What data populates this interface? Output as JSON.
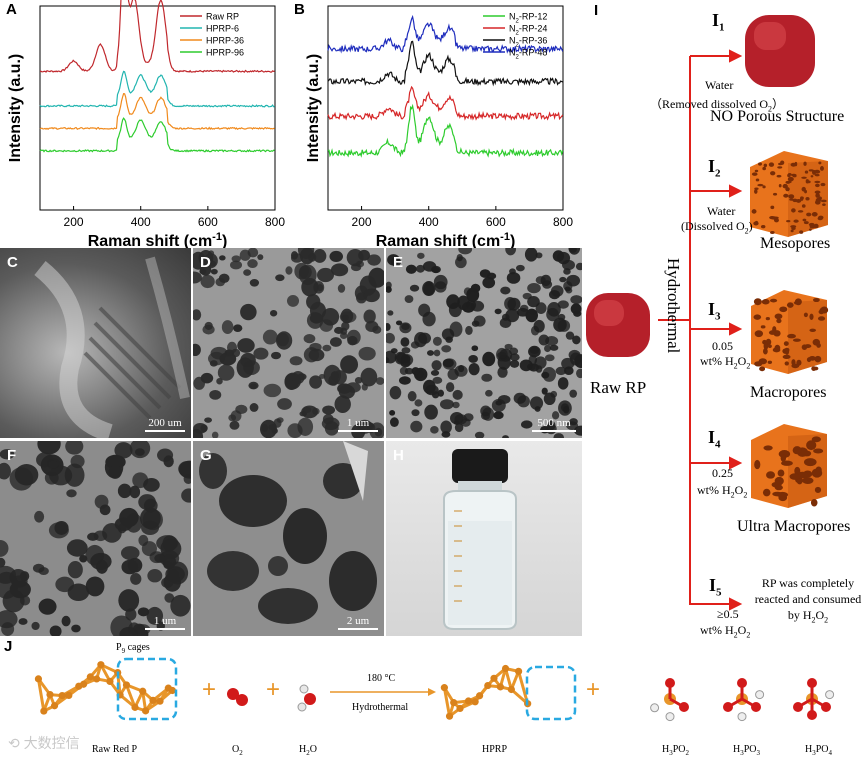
{
  "panel_labels": {
    "a": "A",
    "b": "B",
    "c": "C",
    "d": "D",
    "e": "E",
    "f": "F",
    "g": "G",
    "h": "H",
    "i": "I",
    "j": "J"
  },
  "colors": {
    "raw": "#c0282d",
    "teal": "#22b5b0",
    "orange": "#f08a1d",
    "green": "#2ecc2e",
    "red": "#d62728",
    "black": "#111111",
    "blue": "#1f2dbd",
    "arrow": "#e0201a",
    "cube_red": "#b5202a",
    "cube_orange": "#e8731c",
    "dashed": "#29a9e1",
    "molecule": "#e8962a"
  },
  "chart_data": [
    {
      "type": "line",
      "panel": "A",
      "xlabel": "Raman shift (cm-1)",
      "ylabel": "Intensity (a.u.)",
      "xlim": [
        100,
        800
      ],
      "xticks": [
        200,
        400,
        600,
        800
      ],
      "legend_position": "top-right",
      "series": [
        {
          "name": "Raw  RP",
          "color": "#c0282d",
          "offset": 0.68,
          "peaks": [
            [
              200,
              0.05
            ],
            [
              280,
              0.13
            ],
            [
              350,
              0.55
            ],
            [
              380,
              0.33
            ],
            [
              460,
              0.32
            ]
          ]
        },
        {
          "name": "HPRP-6",
          "color": "#22b5b0",
          "offset": 0.51,
          "peaks": [
            [
              350,
              0.12
            ],
            [
              400,
              0.1
            ],
            [
              460,
              0.1
            ]
          ]
        },
        {
          "name": "HPRP-36",
          "color": "#f08a1d",
          "offset": 0.4,
          "peaks": [
            [
              350,
              0.12
            ],
            [
              400,
              0.1
            ],
            [
              460,
              0.1
            ]
          ]
        },
        {
          "name": "HPRP-96",
          "color": "#2ecc2e",
          "offset": 0.29,
          "peaks": [
            [
              350,
              0.11
            ],
            [
              400,
              0.1
            ],
            [
              460,
              0.09
            ]
          ]
        }
      ]
    },
    {
      "type": "line",
      "panel": "B",
      "xlabel": "Raman shift (cm-1)",
      "ylabel": "Intensity (a.u.)",
      "xlim": [
        100,
        800
      ],
      "xticks": [
        200,
        400,
        600,
        800
      ],
      "legend_position": "top-right",
      "series": [
        {
          "name": "N2-RP-12",
          "color": "#2ecc2e",
          "offset": 0.28,
          "peaks": [
            [
              280,
              0.05
            ],
            [
              350,
              0.2
            ],
            [
              400,
              0.15
            ],
            [
              460,
              0.1
            ]
          ]
        },
        {
          "name": "N2-RP-24",
          "color": "#d62728",
          "offset": 0.46,
          "peaks": [
            [
              280,
              0.04
            ],
            [
              350,
              0.1
            ],
            [
              400,
              0.07
            ],
            [
              460,
              0.06
            ]
          ]
        },
        {
          "name": "N2-RP-36",
          "color": "#111111",
          "offset": 0.63,
          "peaks": [
            [
              280,
              0.04
            ],
            [
              350,
              0.16
            ],
            [
              400,
              0.1
            ],
            [
              460,
              0.08
            ]
          ]
        },
        {
          "name": "N2-RP-48",
          "color": "#1f2dbd",
          "offset": 0.79,
          "peaks": [
            [
              280,
              0.04
            ],
            [
              350,
              0.12
            ],
            [
              400,
              0.09
            ],
            [
              460,
              0.07
            ]
          ]
        }
      ]
    }
  ],
  "scale_bars": {
    "c": "200 um",
    "d": "1 um",
    "e": "500 nm",
    "f": "1 um",
    "g": "2 um"
  },
  "scheme_i": {
    "raw_label": "Raw RP",
    "hydrothermal": "Hydrothermal",
    "routes": [
      {
        "tag": "I1",
        "cond": "Water",
        "cond2": "（Removed dissolved O2）",
        "result": "NO Porous Structure"
      },
      {
        "tag": "I2",
        "cond": "Water",
        "cond2": "(Dissolved O2)",
        "result": "Mesopores"
      },
      {
        "tag": "I3",
        "cond": "0.05",
        "cond2": "wt% H2O2",
        "result": "Macropores"
      },
      {
        "tag": "I4",
        "cond": "0.25",
        "cond2": "wt% H2O2",
        "result": "Ultra Macropores"
      },
      {
        "tag": "I5",
        "cond": "≥0.5",
        "cond2": "wt% H2O2",
        "result": "RP was completely reacted and consumed by H2O2"
      }
    ]
  },
  "scheme_j": {
    "p9_label": "P9 cages",
    "raw": "Raw Red P",
    "o2": "O2",
    "h2o": "H2O",
    "temp": "180 °C",
    "process": "Hydrothermal",
    "hprp": "HPRP",
    "p1": "H3PO2",
    "p2": "H3PO3",
    "p3": "H3PO4",
    "plus": "+"
  },
  "watermark": "大数控信"
}
